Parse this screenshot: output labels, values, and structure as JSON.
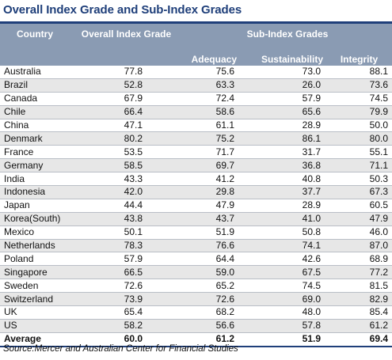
{
  "title": "Overall Index Grade and Sub-Index Grades",
  "headers": {
    "country": "Country",
    "overall": "Overall Index Grade",
    "sub_index": "Sub-Index Grades",
    "adequacy": "Adequacy",
    "sustainability": "Sustainability",
    "integrity": "Integrity"
  },
  "rows": [
    {
      "country": "Australia",
      "overall": "77.8",
      "adequacy": "75.6",
      "sustainability": "73.0",
      "integrity": "88.1"
    },
    {
      "country": "Brazil",
      "overall": "52.8",
      "adequacy": "63.3",
      "sustainability": "26.0",
      "integrity": "73.6"
    },
    {
      "country": "Canada",
      "overall": "67.9",
      "adequacy": "72.4",
      "sustainability": "57.9",
      "integrity": "74.5"
    },
    {
      "country": "Chile",
      "overall": "66.4",
      "adequacy": "58.6",
      "sustainability": "65.6",
      "integrity": "79.9"
    },
    {
      "country": "China",
      "overall": "47.1",
      "adequacy": "61.1",
      "sustainability": "28.9",
      "integrity": "50.0"
    },
    {
      "country": "Denmark",
      "overall": "80.2",
      "adequacy": "75.2",
      "sustainability": "86.1",
      "integrity": "80.0"
    },
    {
      "country": "France",
      "overall": "53.5",
      "adequacy": "71.7",
      "sustainability": "31.7",
      "integrity": "55.1"
    },
    {
      "country": "Germany",
      "overall": "58.5",
      "adequacy": "69.7",
      "sustainability": "36.8",
      "integrity": "71.1"
    },
    {
      "country": "India",
      "overall": "43.3",
      "adequacy": "41.2",
      "sustainability": "40.8",
      "integrity": "50.3"
    },
    {
      "country": "Indonesia",
      "overall": "42.0",
      "adequacy": "29.8",
      "sustainability": "37.7",
      "integrity": "67.3"
    },
    {
      "country": "Japan",
      "overall": "44.4",
      "adequacy": "47.9",
      "sustainability": "28.9",
      "integrity": "60.5"
    },
    {
      "country": "Korea(South)",
      "overall": "43.8",
      "adequacy": "43.7",
      "sustainability": "41.0",
      "integrity": "47.9"
    },
    {
      "country": "Mexico",
      "overall": "50.1",
      "adequacy": "51.9",
      "sustainability": "50.8",
      "integrity": "46.0"
    },
    {
      "country": "Netherlands",
      "overall": "78.3",
      "adequacy": "76.6",
      "sustainability": "74.1",
      "integrity": "87.0"
    },
    {
      "country": "Poland",
      "overall": "57.9",
      "adequacy": "64.4",
      "sustainability": "42.6",
      "integrity": "68.9"
    },
    {
      "country": "Singapore",
      "overall": "66.5",
      "adequacy": "59.0",
      "sustainability": "67.5",
      "integrity": "77.2"
    },
    {
      "country": "Sweden",
      "overall": "72.6",
      "adequacy": "65.2",
      "sustainability": "74.5",
      "integrity": "81.5"
    },
    {
      "country": "Switzerland",
      "overall": "73.9",
      "adequacy": "72.6",
      "sustainability": "69.0",
      "integrity": "82.9"
    },
    {
      "country": "UK",
      "overall": "65.4",
      "adequacy": "68.2",
      "sustainability": "48.0",
      "integrity": "85.4"
    },
    {
      "country": "US",
      "overall": "58.2",
      "adequacy": "56.6",
      "sustainability": "57.8",
      "integrity": "61.2"
    }
  ],
  "average": {
    "country": "Average",
    "overall": "60.0",
    "adequacy": "61.2",
    "sustainability": "51.9",
    "integrity": "69.4"
  },
  "source": "Source:Mercer and Australian Center for Financial Studies",
  "colors": {
    "title": "#1f3f7a",
    "header_bg": "#8a9bb3",
    "header_text": "#ffffff",
    "row_alt": "#e7e7e7"
  }
}
